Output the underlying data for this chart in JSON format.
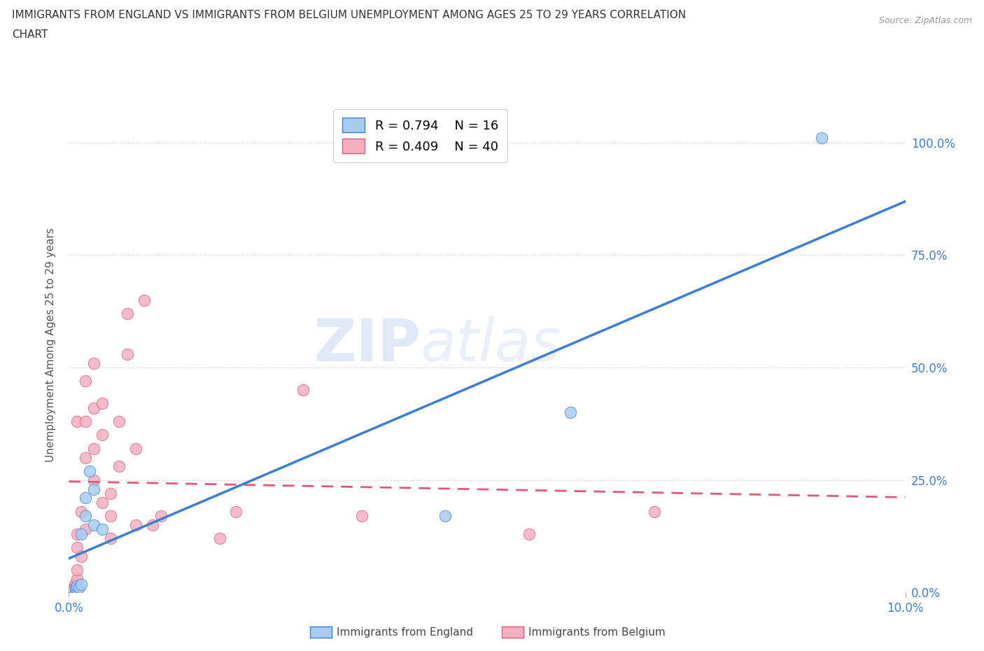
{
  "title_line1": "IMMIGRANTS FROM ENGLAND VS IMMIGRANTS FROM BELGIUM UNEMPLOYMENT AMONG AGES 25 TO 29 YEARS CORRELATION",
  "title_line2": "CHART",
  "source": "Source: ZipAtlas.com",
  "ylabel": "Unemployment Among Ages 25 to 29 years",
  "xlim": [
    0.0,
    0.1
  ],
  "ylim": [
    0.0,
    1.1
  ],
  "yticks": [
    0.0,
    0.25,
    0.5,
    0.75,
    1.0
  ],
  "ytick_labels": [
    "0.0%",
    "25.0%",
    "50.0%",
    "75.0%",
    "100.0%"
  ],
  "xticks": [
    0.0,
    0.1
  ],
  "xtick_labels": [
    "0.0%",
    "10.0%"
  ],
  "england_R": 0.794,
  "england_N": 16,
  "belgium_R": 0.409,
  "belgium_N": 40,
  "england_color": "#a8ccf0",
  "belgium_color": "#f5b0c0",
  "england_line_color": "#3a7fd5",
  "belgium_line_color": "#e05878",
  "watermark_zip": "ZIP",
  "watermark_atlas": "atlas",
  "bottom_legend_label1": "Immigrants from England",
  "bottom_legend_label2": "Immigrants from Belgium",
  "england_x": [
    0.0008,
    0.0008,
    0.001,
    0.001,
    0.0012,
    0.0015,
    0.0015,
    0.002,
    0.002,
    0.0025,
    0.003,
    0.003,
    0.004,
    0.045,
    0.06,
    0.09
  ],
  "england_y": [
    0.005,
    0.01,
    0.008,
    0.015,
    0.012,
    0.018,
    0.13,
    0.17,
    0.21,
    0.27,
    0.15,
    0.23,
    0.14,
    0.17,
    0.4,
    1.01
  ],
  "belgium_x": [
    0.0005,
    0.0005,
    0.0007,
    0.0008,
    0.001,
    0.001,
    0.001,
    0.001,
    0.001,
    0.0015,
    0.0015,
    0.002,
    0.002,
    0.002,
    0.002,
    0.003,
    0.003,
    0.003,
    0.003,
    0.004,
    0.004,
    0.004,
    0.005,
    0.005,
    0.005,
    0.006,
    0.006,
    0.007,
    0.007,
    0.008,
    0.008,
    0.009,
    0.01,
    0.011,
    0.018,
    0.02,
    0.028,
    0.035,
    0.055,
    0.07
  ],
  "belgium_y": [
    0.005,
    0.01,
    0.015,
    0.02,
    0.03,
    0.05,
    0.1,
    0.13,
    0.38,
    0.08,
    0.18,
    0.14,
    0.3,
    0.38,
    0.47,
    0.25,
    0.32,
    0.41,
    0.51,
    0.2,
    0.35,
    0.42,
    0.12,
    0.17,
    0.22,
    0.28,
    0.38,
    0.53,
    0.62,
    0.15,
    0.32,
    0.65,
    0.15,
    0.17,
    0.12,
    0.18,
    0.45,
    0.17,
    0.13,
    0.18
  ]
}
